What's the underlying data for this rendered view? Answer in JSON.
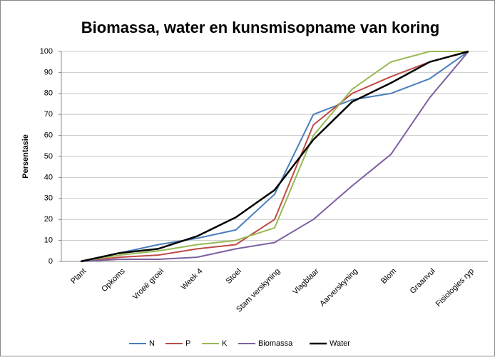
{
  "chart_data": {
    "type": "line",
    "title": "Biomassa, water en kunsmisopname van koring",
    "y_label": "Persentasie",
    "categories": [
      "Plant",
      "Opkoms",
      "Vroeë groei",
      "Week 4",
      "Stoel",
      "Stam verskyning",
      "Vlagblaar",
      "Aarverskyning",
      "Blom",
      "Graanvul",
      "Fisiologies ryp"
    ],
    "series": [
      {
        "name": "N",
        "color": "#4a7ebb",
        "values": [
          0,
          4,
          8,
          11,
          15,
          32,
          70,
          77,
          80,
          87,
          100
        ]
      },
      {
        "name": "P",
        "color": "#be4b48",
        "values": [
          0,
          2,
          3,
          6,
          8,
          20,
          65,
          80,
          88,
          95,
          100
        ]
      },
      {
        "name": "K",
        "color": "#98b954",
        "values": [
          0,
          3,
          5,
          8,
          10,
          16,
          60,
          82,
          95,
          100,
          100
        ]
      },
      {
        "name": "Biomassa",
        "color": "#7d60a0",
        "values": [
          0,
          1,
          1,
          2,
          6,
          9,
          20,
          36,
          51,
          78,
          100
        ]
      },
      {
        "name": "Water",
        "color": "#000000",
        "values": [
          0,
          4,
          6,
          12,
          21,
          34,
          58,
          76,
          85,
          95,
          100
        ]
      }
    ],
    "ylim": [
      0,
      100
    ],
    "yticks": [
      0,
      10,
      20,
      30,
      40,
      50,
      60,
      70,
      80,
      90,
      100
    ],
    "grid": true,
    "legend": "bottom"
  }
}
